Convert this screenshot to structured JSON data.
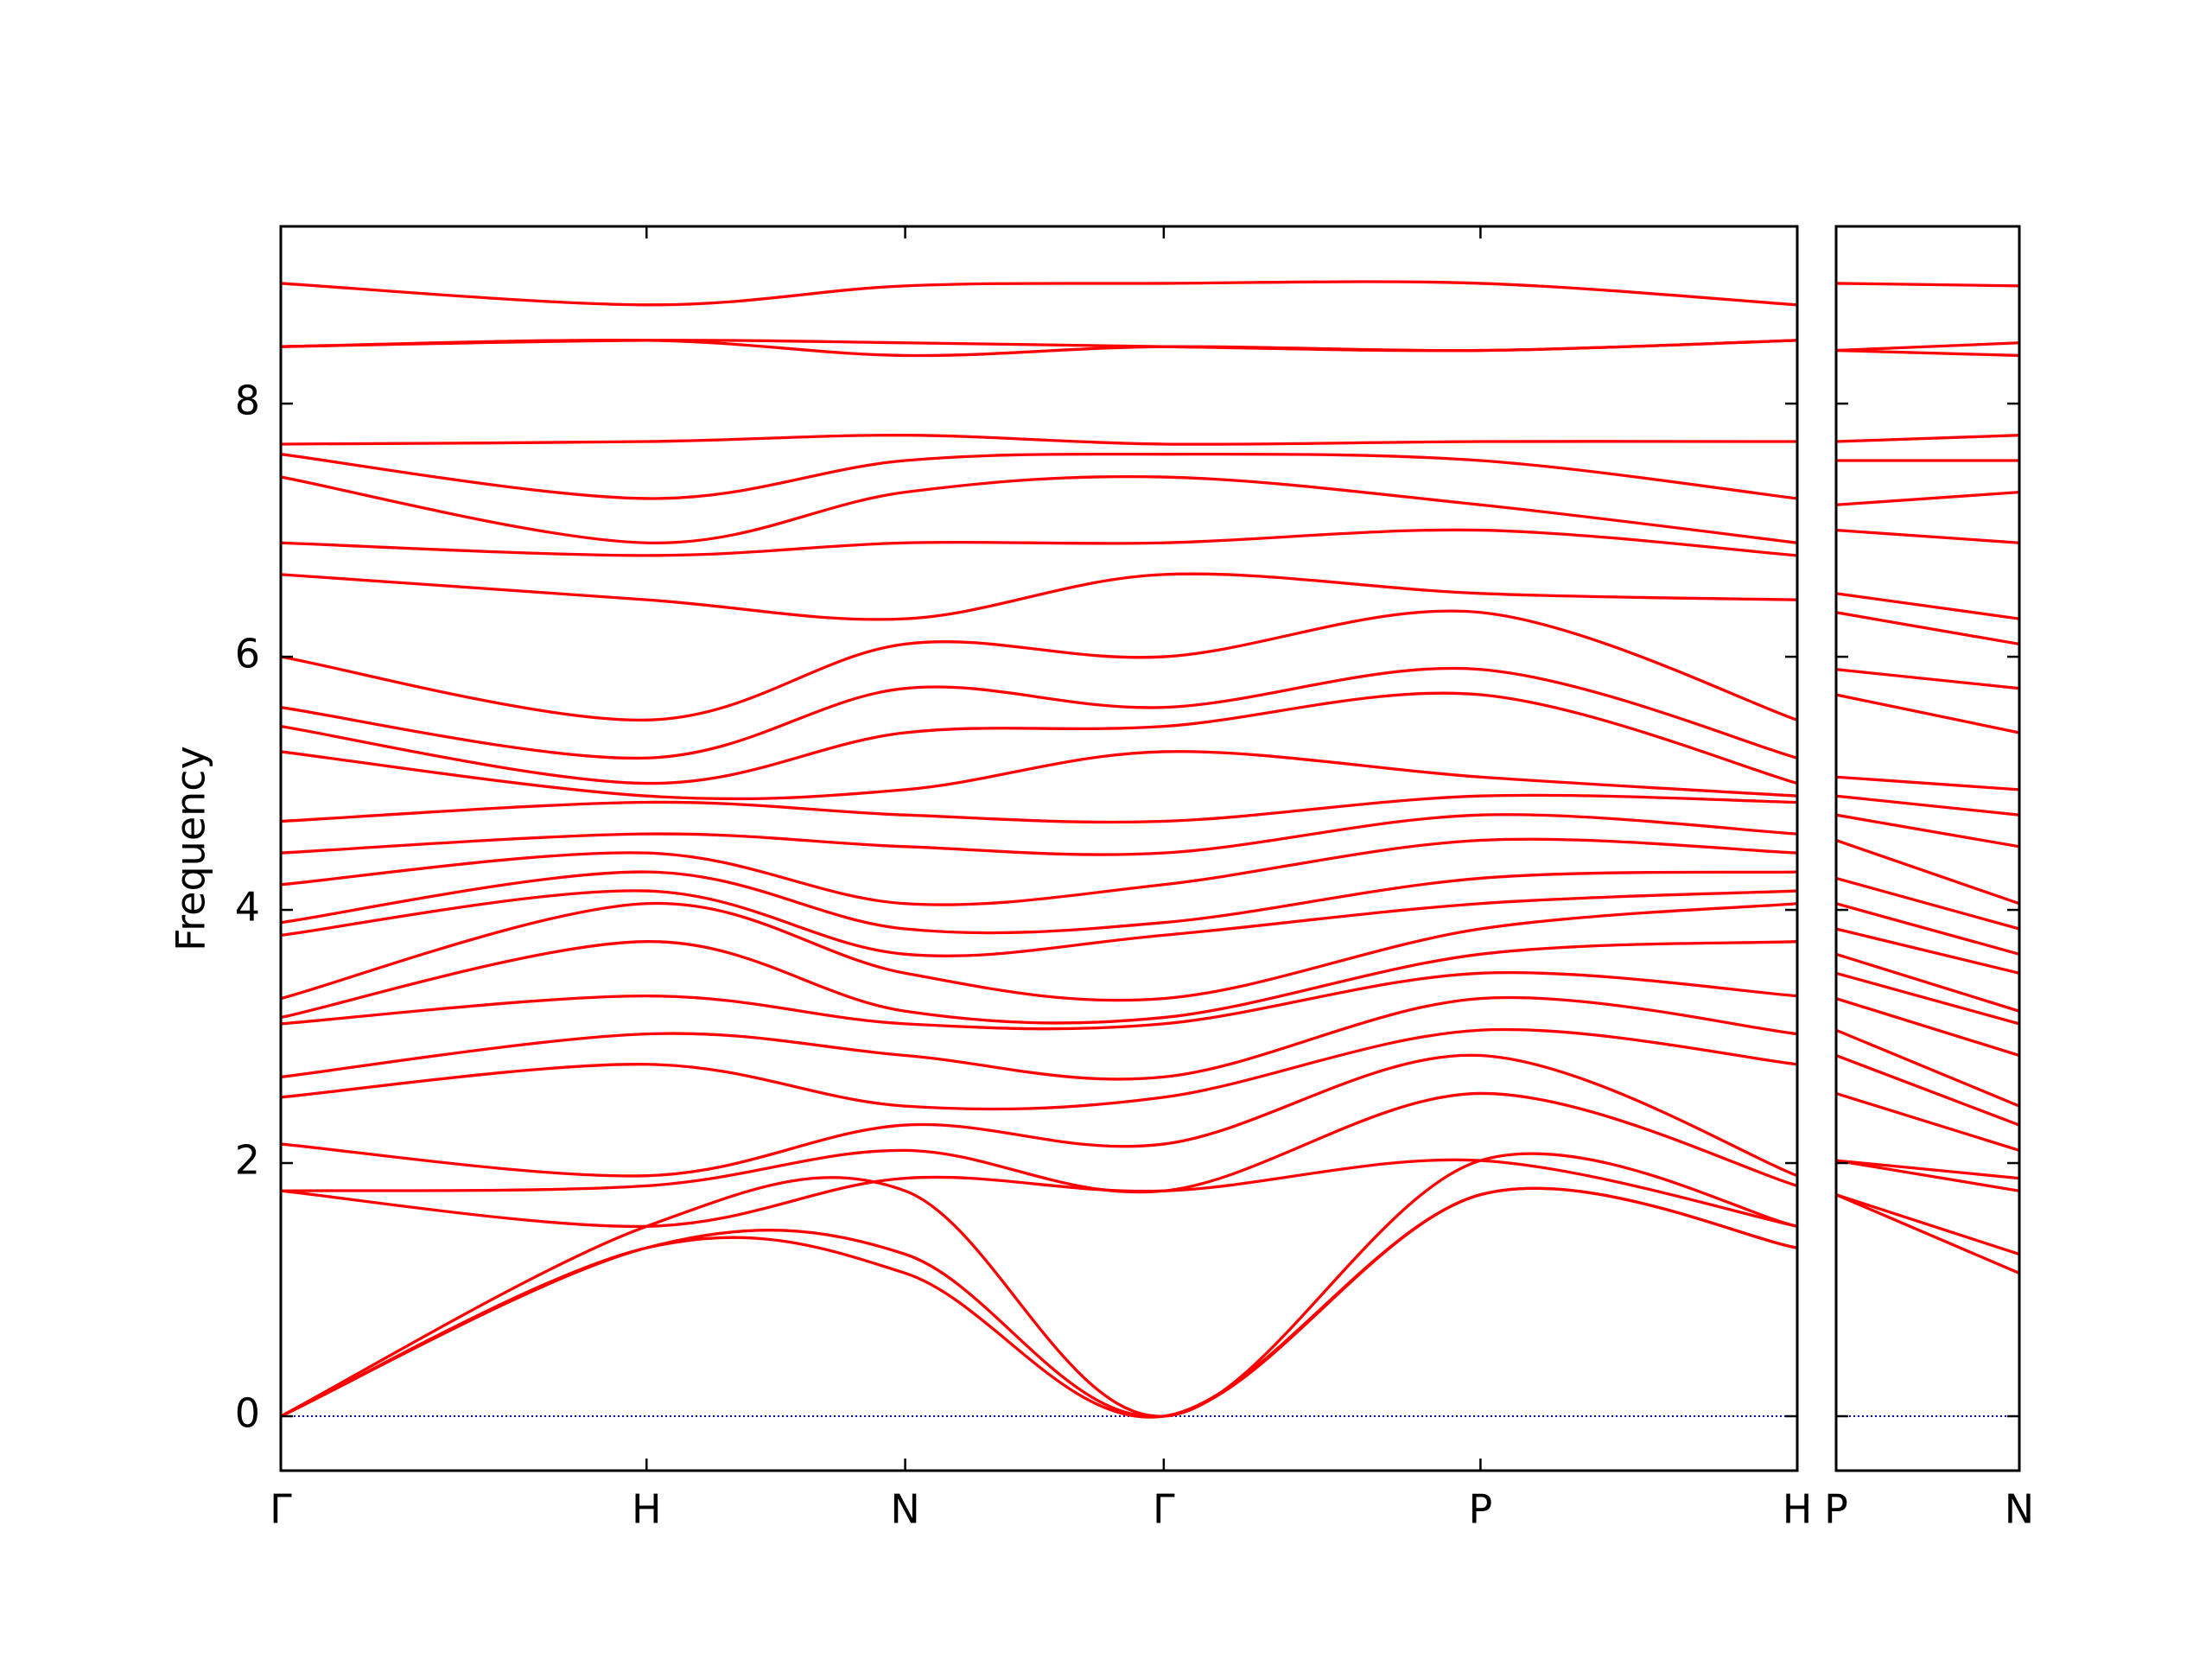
{
  "chart_data": [
    {
      "type": "line",
      "y_label": "Frequency",
      "color": "#ff0000",
      "x": [
        0,
        1,
        1.7071,
        2.4142,
        3.2802,
        4.1463
      ],
      "xlim": [
        0,
        4.1463
      ],
      "xticks": [
        {
          "value": 0,
          "label": "Γ"
        },
        {
          "value": 1,
          "label": "H"
        },
        {
          "value": 1.7071,
          "label": "N"
        },
        {
          "value": 2.4142,
          "label": "Γ"
        },
        {
          "value": 3.2802,
          "label": "P"
        },
        {
          "value": 4.1463,
          "label": "H"
        }
      ],
      "ylim": [
        -0.43,
        9.4
      ],
      "yticks": [
        0,
        2,
        4,
        6,
        8
      ],
      "ytick_labels": true,
      "hline": 0,
      "hline_color": "#0000cc",
      "series": [
        {
          "values": [
            0,
            1.33,
            1.13,
            0,
            1.75,
            1.33
          ]
        },
        {
          "values": [
            0,
            1.33,
            1.28,
            0,
            1.75,
            1.33
          ]
        },
        {
          "values": [
            0,
            1.5,
            1.78,
            0,
            2.02,
            1.5
          ]
        },
        {
          "values": [
            1.78,
            1.5,
            1.88,
            1.78,
            2.02,
            1.5
          ]
        },
        {
          "values": [
            1.78,
            1.82,
            2.1,
            1.78,
            2.55,
            1.82
          ]
        },
        {
          "values": [
            2.15,
            1.9,
            2.3,
            2.15,
            2.85,
            1.9
          ]
        },
        {
          "values": [
            2.52,
            2.78,
            2.45,
            2.52,
            3.05,
            2.78
          ]
        },
        {
          "values": [
            2.68,
            3.02,
            2.85,
            2.68,
            3.3,
            3.02
          ]
        },
        {
          "values": [
            3.1,
            3.32,
            3.1,
            3.1,
            3.5,
            3.32
          ]
        },
        {
          "values": [
            3.15,
            3.75,
            3.2,
            3.15,
            3.65,
            3.75
          ]
        },
        {
          "values": [
            3.3,
            4.05,
            3.5,
            3.3,
            3.85,
            4.05
          ]
        },
        {
          "values": [
            3.8,
            4.15,
            3.65,
            3.8,
            4.05,
            4.15
          ]
        },
        {
          "values": [
            3.9,
            4.3,
            3.85,
            3.9,
            4.25,
            4.3
          ]
        },
        {
          "values": [
            4.2,
            4.45,
            4.05,
            4.2,
            4.55,
            4.45
          ]
        },
        {
          "values": [
            4.45,
            4.6,
            4.5,
            4.45,
            4.75,
            4.6
          ]
        },
        {
          "values": [
            4.7,
            4.85,
            4.75,
            4.7,
            4.9,
            4.85
          ]
        },
        {
          "values": [
            5.25,
            4.9,
            4.95,
            5.25,
            5.05,
            4.9
          ]
        },
        {
          "values": [
            5.45,
            5.0,
            5.4,
            5.45,
            5.7,
            5.0
          ]
        },
        {
          "values": [
            5.6,
            5.2,
            5.75,
            5.6,
            5.9,
            5.2
          ]
        },
        {
          "values": [
            6.0,
            5.5,
            6.1,
            6.0,
            6.35,
            5.5
          ]
        },
        {
          "values": [
            6.65,
            6.45,
            6.3,
            6.65,
            6.5,
            6.45
          ]
        },
        {
          "values": [
            6.9,
            6.8,
            6.9,
            6.9,
            7.0,
            6.8
          ]
        },
        {
          "values": [
            7.42,
            6.9,
            7.3,
            7.42,
            7.2,
            6.9
          ]
        },
        {
          "values": [
            7.6,
            7.25,
            7.55,
            7.6,
            7.55,
            7.25
          ]
        },
        {
          "values": [
            7.68,
            7.7,
            7.75,
            7.68,
            7.7,
            7.7
          ]
        },
        {
          "values": [
            8.45,
            8.5,
            8.38,
            8.45,
            8.42,
            8.5
          ]
        },
        {
          "values": [
            8.45,
            8.5,
            8.48,
            8.45,
            8.42,
            8.5
          ]
        },
        {
          "values": [
            8.95,
            8.78,
            8.93,
            8.95,
            8.95,
            8.78
          ]
        }
      ]
    },
    {
      "type": "line",
      "color": "#ff0000",
      "x": [
        0,
        0.5
      ],
      "xlim": [
        0,
        0.5
      ],
      "xticks": [
        {
          "value": 0,
          "label": "P"
        },
        {
          "value": 0.5,
          "label": "N"
        }
      ],
      "ylim": [
        -0.43,
        9.4
      ],
      "yticks": [
        0,
        2,
        4,
        6,
        8
      ],
      "ytick_labels": false,
      "hline": 0,
      "hline_color": "#0000cc",
      "series": [
        {
          "values": [
            1.75,
            1.13
          ]
        },
        {
          "values": [
            1.75,
            1.28
          ]
        },
        {
          "values": [
            2.02,
            1.78
          ]
        },
        {
          "values": [
            2.02,
            1.88
          ]
        },
        {
          "values": [
            2.55,
            2.1
          ]
        },
        {
          "values": [
            2.85,
            2.3
          ]
        },
        {
          "values": [
            3.05,
            2.45
          ]
        },
        {
          "values": [
            3.3,
            2.85
          ]
        },
        {
          "values": [
            3.5,
            3.1
          ]
        },
        {
          "values": [
            3.65,
            3.2
          ]
        },
        {
          "values": [
            3.85,
            3.5
          ]
        },
        {
          "values": [
            4.05,
            3.65
          ]
        },
        {
          "values": [
            4.25,
            3.85
          ]
        },
        {
          "values": [
            4.55,
            4.05
          ]
        },
        {
          "values": [
            4.75,
            4.5
          ]
        },
        {
          "values": [
            4.9,
            4.75
          ]
        },
        {
          "values": [
            5.05,
            4.95
          ]
        },
        {
          "values": [
            5.7,
            5.4
          ]
        },
        {
          "values": [
            5.9,
            5.75
          ]
        },
        {
          "values": [
            6.35,
            6.1
          ]
        },
        {
          "values": [
            6.5,
            6.3
          ]
        },
        {
          "values": [
            7.0,
            6.9
          ]
        },
        {
          "values": [
            7.2,
            7.3
          ]
        },
        {
          "values": [
            7.55,
            7.55
          ]
        },
        {
          "values": [
            7.7,
            7.75
          ]
        },
        {
          "values": [
            8.42,
            8.38
          ]
        },
        {
          "values": [
            8.42,
            8.48
          ]
        },
        {
          "values": [
            8.95,
            8.93
          ]
        }
      ]
    }
  ]
}
